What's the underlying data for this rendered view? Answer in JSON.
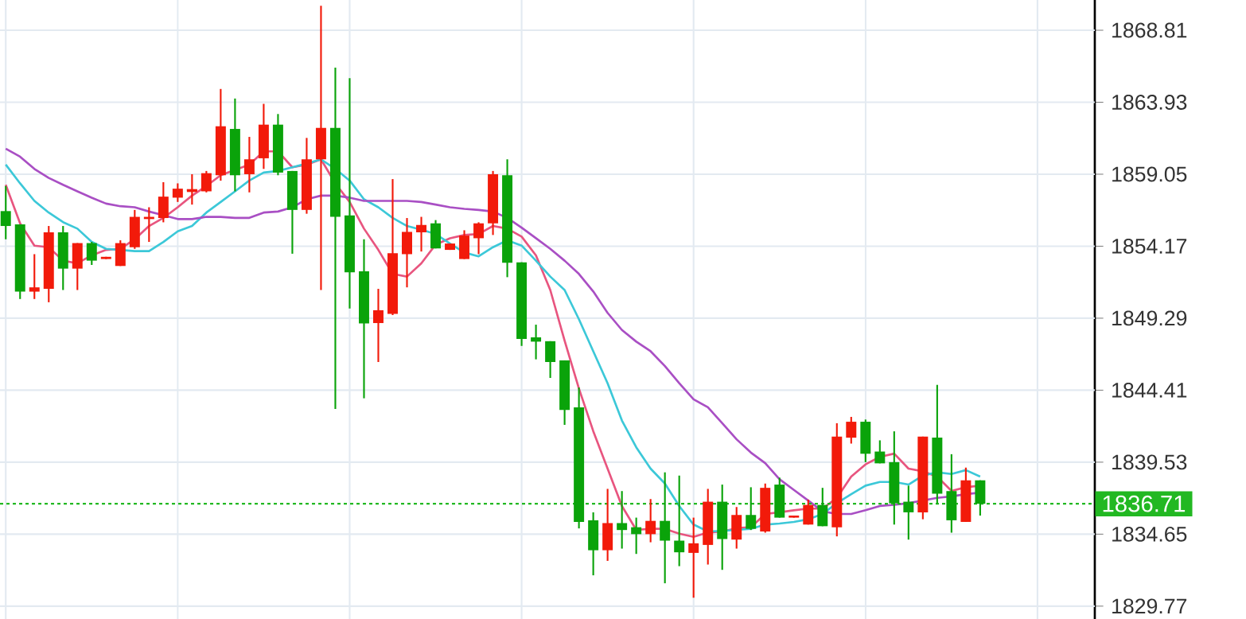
{
  "chart_data": {
    "type": "candlestick",
    "tick_labels": "y",
    "grid": true,
    "categories": [
      null,
      null,
      null,
      null,
      null,
      null,
      null,
      null,
      null,
      null,
      null,
      null,
      null,
      null,
      null,
      null,
      null,
      null,
      null,
      null,
      null,
      null,
      null,
      null,
      null,
      null,
      null,
      null,
      null,
      null,
      null,
      null,
      null,
      null,
      null,
      null,
      null,
      null,
      null,
      null,
      null,
      null,
      null,
      null,
      null,
      null,
      null,
      null,
      null,
      null,
      null,
      null,
      null,
      null,
      null,
      null,
      null,
      null,
      null,
      null,
      null,
      null,
      null,
      null,
      null,
      null,
      null,
      null,
      null
    ],
    "ohlc": [
      [
        1856.55,
        1858.25,
        1854.64,
        1855.54
      ],
      [
        1855.65,
        1855.65,
        1850.59,
        1851.09
      ],
      [
        1851.09,
        1853.63,
        1850.59,
        1851.38
      ],
      [
        1851.28,
        1855.54,
        1850.37,
        1855.11
      ],
      [
        1855.11,
        1855.54,
        1851.2,
        1852.65
      ],
      [
        1852.65,
        1854.38,
        1851.2,
        1854.38
      ],
      [
        1854.38,
        1854.46,
        1852.9,
        1853.19
      ],
      [
        1853.3,
        1853.45,
        1853.3,
        1853.45
      ],
      [
        1852.83,
        1854.57,
        1852.83,
        1854.38
      ],
      [
        1854.1,
        1856.63,
        1853.99,
        1856.16
      ],
      [
        1856.01,
        1856.81,
        1854.46,
        1856.16
      ],
      [
        1856.08,
        1858.51,
        1855.79,
        1857.53
      ],
      [
        1857.46,
        1858.43,
        1857.17,
        1858.07
      ],
      [
        1857.93,
        1859.05,
        1856.99,
        1858.04
      ],
      [
        1857.89,
        1859.27,
        1857.82,
        1859.12
      ],
      [
        1858.98,
        1864.83,
        1858.61,
        1862.3
      ],
      [
        1862.12,
        1864.18,
        1857.89,
        1858.98
      ],
      [
        1859.05,
        1861.58,
        1857.82,
        1860.06
      ],
      [
        1860.13,
        1863.82,
        1859.41,
        1862.41
      ],
      [
        1862.41,
        1863.13,
        1858.98,
        1859.16
      ],
      [
        1859.27,
        1859.27,
        1853.66,
        1856.63
      ],
      [
        1856.63,
        1861.51,
        1856.37,
        1860.06
      ],
      [
        1860.06,
        1870.47,
        1851.2,
        1862.19
      ],
      [
        1862.19,
        1866.28,
        1843.14,
        1856.16
      ],
      [
        1856.26,
        1865.56,
        1849.94,
        1852.4
      ],
      [
        1852.47,
        1854.64,
        1843.86,
        1848.93
      ],
      [
        1848.96,
        1851.28,
        1846.32,
        1849.83
      ],
      [
        1849.58,
        1858.72,
        1849.5,
        1853.7
      ],
      [
        1853.63,
        1856.08,
        1851.38,
        1855.14
      ],
      [
        1855.11,
        1856.16,
        1853.81,
        1855.61
      ],
      [
        1855.72,
        1855.94,
        1854.02,
        1854.02
      ],
      [
        1853.92,
        1854.35,
        1853.92,
        1854.35
      ],
      [
        1853.3,
        1855.25,
        1853.3,
        1854.89
      ],
      [
        1854.71,
        1855.79,
        1853.63,
        1855.72
      ],
      [
        1855.72,
        1859.27,
        1854.93,
        1859.05
      ],
      [
        1858.98,
        1860.06,
        1852.07,
        1853.05
      ],
      [
        1853.08,
        1853.08,
        1847.41,
        1847.88
      ],
      [
        1847.99,
        1848.85,
        1846.5,
        1847.7
      ],
      [
        1847.73,
        1847.73,
        1845.24,
        1846.32
      ],
      [
        1846.43,
        1846.43,
        1842.06,
        1843.07
      ],
      [
        1843.25,
        1844.59,
        1835.04,
        1835.48
      ],
      [
        1835.59,
        1836.13,
        1831.86,
        1833.56
      ],
      [
        1833.56,
        1837.72,
        1832.84,
        1835.4
      ],
      [
        1835.4,
        1837.57,
        1833.67,
        1834.93
      ],
      [
        1835.12,
        1835.77,
        1833.31,
        1834.65
      ],
      [
        1834.65,
        1837.03,
        1834.1,
        1835.55
      ],
      [
        1835.55,
        1838.84,
        1831.32,
        1834.21
      ],
      [
        1834.21,
        1838.62,
        1832.48,
        1833.42
      ],
      [
        1833.38,
        1835.77,
        1830.34,
        1834.03
      ],
      [
        1833.92,
        1837.72,
        1832.59,
        1836.85
      ],
      [
        1836.85,
        1838.01,
        1832.23,
        1834.32
      ],
      [
        1834.28,
        1836.49,
        1833.67,
        1835.95
      ],
      [
        1835.95,
        1837.83,
        1834.93,
        1835.01
      ],
      [
        1834.83,
        1838.08,
        1834.75,
        1837.79
      ],
      [
        1838.01,
        1838.48,
        1835.77,
        1835.77
      ],
      [
        1835.77,
        1835.91,
        1835.77,
        1835.91
      ],
      [
        1835.3,
        1836.99,
        1835.3,
        1836.63
      ],
      [
        1836.63,
        1837.79,
        1835.19,
        1835.19
      ],
      [
        1835.12,
        1842.17,
        1834.5,
        1841.26
      ],
      [
        1841.19,
        1842.6,
        1840.79,
        1842.27
      ],
      [
        1842.27,
        1842.42,
        1839.53,
        1840.1
      ],
      [
        1840.25,
        1841.01,
        1839.45,
        1839.45
      ],
      [
        1839.53,
        1841.62,
        1835.3,
        1836.74
      ],
      [
        1836.85,
        1837.94,
        1834.28,
        1836.13
      ],
      [
        1836.13,
        1841.26,
        1835.66,
        1841.26
      ],
      [
        1841.19,
        1844.77,
        1836.74,
        1837.39
      ],
      [
        1837.57,
        1840.07,
        1834.75,
        1835.59
      ],
      [
        1835.48,
        1839.16,
        1835.48,
        1838.3
      ],
      [
        1838.3,
        1838.3,
        1835.91,
        1836.71
      ]
    ],
    "colors": [
      "#0aa30a",
      "#0aa30a",
      "#f21a0a",
      "#f21a0a",
      "#0aa30a",
      "#f21a0a",
      "#0aa30a",
      "#f21a0a",
      "#f21a0a",
      "#f21a0a",
      "#f21a0a",
      "#f21a0a",
      "#f21a0a",
      "#f21a0a",
      "#f21a0a",
      "#f21a0a",
      "#0aa30a",
      "#f21a0a",
      "#f21a0a",
      "#0aa30a",
      "#0aa30a",
      "#f21a0a",
      "#f21a0a",
      "#0aa30a",
      "#0aa30a",
      "#0aa30a",
      "#f21a0a",
      "#f21a0a",
      "#f21a0a",
      "#f21a0a",
      "#0aa30a",
      "#f21a0a",
      "#f21a0a",
      "#f21a0a",
      "#f21a0a",
      "#0aa30a",
      "#0aa30a",
      "#0aa30a",
      "#0aa30a",
      "#0aa30a",
      "#0aa30a",
      "#0aa30a",
      "#f21a0a",
      "#0aa30a",
      "#0aa30a",
      "#f21a0a",
      "#0aa30a",
      "#0aa30a",
      "#f21a0a",
      "#f21a0a",
      "#0aa30a",
      "#f21a0a",
      "#0aa30a",
      "#f21a0a",
      "#0aa30a",
      "#f21a0a",
      "#f21a0a",
      "#0aa30a",
      "#f21a0a",
      "#f21a0a",
      "#0aa30a",
      "#0aa30a",
      "#0aa30a",
      "#0aa30a",
      "#f21a0a",
      "#0aa30a",
      "#0aa30a",
      "#f21a0a",
      "#0aa30a"
    ],
    "series": [
      {
        "type": "line",
        "color": "#e8557f",
        "values": [
          1858.33,
          1855.72,
          1854.21,
          1854.1,
          1853.19,
          1853.01,
          1853.55,
          1853.92,
          1853.99,
          1854.64,
          1855.54,
          1856.09,
          1856.81,
          1857.6,
          1858.25,
          1858.98,
          1859.34,
          1859.7,
          1860.6,
          1860.6,
          1859.52,
          1859.7,
          1860.06,
          1858.43,
          1857.17,
          1855.36,
          1853.92,
          1852.29,
          1852.11,
          1853.01,
          1854.28,
          1854.71,
          1854.93,
          1855.0,
          1855.54,
          1855.36,
          1854.82,
          1853.55,
          1851.2,
          1847.77,
          1844.52,
          1841.63,
          1839.09,
          1836.56,
          1834.94,
          1835.01,
          1835.01,
          1834.68,
          1834.47,
          1834.76,
          1834.83,
          1835.05,
          1835.12,
          1836.02,
          1836.13,
          1836.27,
          1836.38,
          1836.38,
          1837.11,
          1838.55,
          1839.38,
          1839.89,
          1840.11,
          1839.09,
          1838.91,
          1838.55,
          1837.58,
          1837.83,
          1837.94
        ]
      },
      {
        "type": "line",
        "color": "#3cc8d8",
        "values": [
          1859.7,
          1858.43,
          1857.24,
          1856.45,
          1855.8,
          1855.36,
          1854.46,
          1853.99,
          1853.92,
          1853.84,
          1853.84,
          1854.46,
          1855.18,
          1855.54,
          1856.45,
          1857.17,
          1857.89,
          1858.62,
          1859.16,
          1859.27,
          1859.52,
          1859.77,
          1860.06,
          1859.41,
          1858.62,
          1857.35,
          1856.81,
          1856.09,
          1855.54,
          1855.29,
          1855.0,
          1854.35,
          1853.74,
          1853.48,
          1854.1,
          1854.57,
          1854.21,
          1853.19,
          1852.11,
          1851.2,
          1849.22,
          1847.05,
          1844.88,
          1842.35,
          1840.54,
          1839.09,
          1838.08,
          1836.56,
          1835.3,
          1834.83,
          1834.87,
          1834.94,
          1835.01,
          1835.3,
          1835.37,
          1835.48,
          1835.66,
          1836.02,
          1836.75,
          1837.36,
          1837.94,
          1838.19,
          1838.19,
          1838.01,
          1838.62,
          1838.84,
          1838.73,
          1838.99,
          1838.55
        ]
      },
      {
        "type": "line",
        "color": "#a94fc4",
        "values": [
          1860.78,
          1860.24,
          1859.41,
          1858.8,
          1858.33,
          1857.89,
          1857.46,
          1857.06,
          1856.88,
          1856.81,
          1856.52,
          1856.27,
          1856.01,
          1856.01,
          1856.16,
          1856.16,
          1856.09,
          1856.09,
          1856.45,
          1856.52,
          1856.81,
          1857.35,
          1857.6,
          1857.6,
          1857.46,
          1857.24,
          1857.24,
          1857.24,
          1857.24,
          1857.17,
          1856.99,
          1856.81,
          1856.7,
          1856.63,
          1856.52,
          1856.09,
          1855.43,
          1854.71,
          1853.99,
          1853.19,
          1852.29,
          1851.1,
          1849.65,
          1848.49,
          1847.7,
          1847.05,
          1846.04,
          1844.88,
          1843.79,
          1843.25,
          1842.17,
          1841.08,
          1840.18,
          1839.46,
          1838.37,
          1837.65,
          1836.93,
          1836.2,
          1836.02,
          1836.02,
          1836.27,
          1836.56,
          1836.64,
          1836.75,
          1836.93,
          1837.11,
          1837.21,
          1837.36,
          1837.47
        ]
      }
    ],
    "ylim": [
      1828.9,
      1870.86
    ],
    "yticks": [
      1829.77,
      1834.65,
      1839.53,
      1844.41,
      1849.29,
      1854.17,
      1859.05,
      1863.93,
      1868.81
    ],
    "ref_lines": [
      {
        "axis": "y",
        "value": 1836.71,
        "label": "1836.71",
        "color": "#22b822",
        "line_style": "dotted"
      }
    ]
  }
}
